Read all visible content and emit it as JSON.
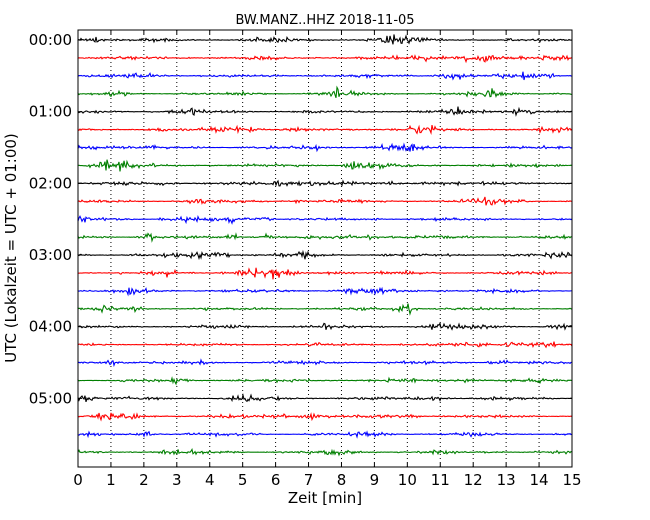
{
  "chart_data": {
    "type": "line",
    "title": "BW.MANZ..HHZ 2018-11-05",
    "xlabel": "Zeit  [min]",
    "ylabel": "UTC (Lokalzeit = UTC + 01:00)",
    "xlim": [
      0,
      15
    ],
    "x_ticks": [
      "0",
      "1",
      "2",
      "3",
      "4",
      "5",
      "6",
      "7",
      "8",
      "9",
      "10",
      "11",
      "12",
      "13",
      "14",
      "15"
    ],
    "y_ticks": [
      "00:00",
      "01:00",
      "02:00",
      "03:00",
      "04:00",
      "05:00"
    ],
    "grid": "vertical dotted lines at each minute",
    "legend": "none",
    "trace_minutes": 15,
    "trace_count": 24,
    "trace_colors": [
      "#000000",
      "#ff0000",
      "#0000ff",
      "#007f00"
    ],
    "trace_start_times": [
      "00:00",
      "00:15",
      "00:30",
      "00:45",
      "01:00",
      "01:15",
      "01:30",
      "01:45",
      "02:00",
      "02:15",
      "02:30",
      "02:45",
      "03:00",
      "03:15",
      "03:30",
      "03:45",
      "04:00",
      "04:15",
      "04:30",
      "04:45",
      "05:00",
      "05:15",
      "05:30",
      "05:45"
    ]
  }
}
